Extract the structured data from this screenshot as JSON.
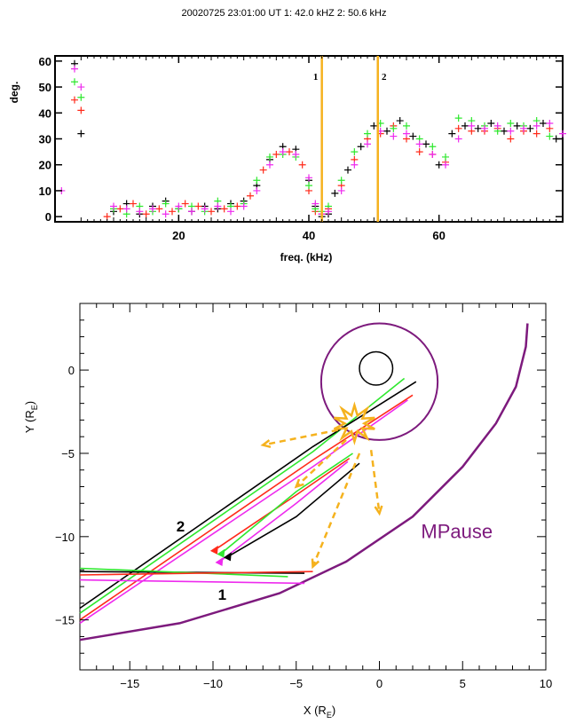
{
  "header": {
    "title": "20020725  23:01:00 UT  1: 42.0 kHZ    2:  50.6 kHz"
  },
  "colors": {
    "black": "#000000",
    "red": "#ff2a1a",
    "green": "#2ee82e",
    "magenta": "#ee2aee",
    "orange": "#f5b21e",
    "purple": "#7d1a7d"
  },
  "chart_data": [
    {
      "type": "scatter",
      "title": "20020725  23:01:00 UT  1: 42.0 kHZ    2:  50.6 kHz",
      "xlabel": "freq. (kHz)",
      "ylabel": "deg.",
      "xlim": [
        1,
        79
      ],
      "ylim": [
        -2,
        62
      ],
      "x_ticks": [
        20,
        40,
        60
      ],
      "y_ticks": [
        0,
        10,
        20,
        30,
        40,
        50,
        60
      ],
      "markers": [
        {
          "label": "1",
          "x": 42.0,
          "color": "#f5b21e"
        },
        {
          "label": "2",
          "x": 50.6,
          "color": "#f5b21e"
        }
      ],
      "series": [
        {
          "color": "#000000",
          "points": [
            [
              4,
              59
            ],
            [
              5,
              32
            ],
            [
              10,
              2
            ],
            [
              12,
              5
            ],
            [
              14,
              1
            ],
            [
              16,
              4
            ],
            [
              18,
              6
            ],
            [
              20,
              3
            ],
            [
              22,
              2
            ],
            [
              24,
              4
            ],
            [
              26,
              3
            ],
            [
              28,
              5
            ],
            [
              30,
              6
            ],
            [
              32,
              12
            ],
            [
              34,
              22
            ],
            [
              36,
              27
            ],
            [
              38,
              26
            ],
            [
              40,
              14
            ],
            [
              41,
              4
            ],
            [
              42,
              0
            ],
            [
              43,
              1
            ],
            [
              44,
              9
            ],
            [
              46,
              18
            ],
            [
              48,
              27
            ],
            [
              50,
              35
            ],
            [
              52,
              33
            ],
            [
              54,
              37
            ],
            [
              56,
              31
            ],
            [
              58,
              28
            ],
            [
              60,
              20
            ],
            [
              62,
              32
            ],
            [
              64,
              35
            ],
            [
              66,
              34
            ],
            [
              68,
              36
            ],
            [
              70,
              33
            ],
            [
              72,
              35
            ],
            [
              74,
              34
            ],
            [
              76,
              36
            ],
            [
              78,
              30
            ]
          ]
        },
        {
          "color": "#ff2a1a",
          "points": [
            [
              4,
              45
            ],
            [
              5,
              41
            ],
            [
              9,
              0
            ],
            [
              11,
              3
            ],
            [
              13,
              5
            ],
            [
              15,
              1
            ],
            [
              17,
              3
            ],
            [
              19,
              2
            ],
            [
              21,
              5
            ],
            [
              23,
              4
            ],
            [
              25,
              2
            ],
            [
              27,
              3
            ],
            [
              29,
              4
            ],
            [
              31,
              8
            ],
            [
              33,
              18
            ],
            [
              35,
              24
            ],
            [
              37,
              25
            ],
            [
              39,
              20
            ],
            [
              40,
              10
            ],
            [
              41,
              2
            ],
            [
              42,
              1
            ],
            [
              43,
              3
            ],
            [
              45,
              12
            ],
            [
              47,
              22
            ],
            [
              49,
              30
            ],
            [
              51,
              32
            ],
            [
              53,
              35
            ],
            [
              55,
              30
            ],
            [
              57,
              25
            ],
            [
              59,
              24
            ],
            [
              61,
              21
            ],
            [
              63,
              34
            ],
            [
              65,
              33
            ],
            [
              67,
              33
            ],
            [
              69,
              34
            ],
            [
              71,
              30
            ],
            [
              73,
              33
            ],
            [
              75,
              32
            ],
            [
              77,
              34
            ]
          ]
        },
        {
          "color": "#2ee82e",
          "points": [
            [
              4,
              52
            ],
            [
              5,
              46
            ],
            [
              10,
              3
            ],
            [
              12,
              1
            ],
            [
              14,
              4
            ],
            [
              16,
              2
            ],
            [
              18,
              5
            ],
            [
              20,
              3
            ],
            [
              22,
              4
            ],
            [
              24,
              2
            ],
            [
              26,
              6
            ],
            [
              28,
              4
            ],
            [
              30,
              5
            ],
            [
              32,
              14
            ],
            [
              34,
              23
            ],
            [
              36,
              24
            ],
            [
              38,
              23
            ],
            [
              40,
              12
            ],
            [
              41,
              3
            ],
            [
              42,
              2
            ],
            [
              43,
              4
            ],
            [
              45,
              14
            ],
            [
              47,
              25
            ],
            [
              49,
              32
            ],
            [
              51,
              36
            ],
            [
              53,
              34
            ],
            [
              55,
              35
            ],
            [
              57,
              30
            ],
            [
              59,
              27
            ],
            [
              61,
              23
            ],
            [
              63,
              38
            ],
            [
              65,
              37
            ],
            [
              67,
              35
            ],
            [
              69,
              33
            ],
            [
              71,
              36
            ],
            [
              73,
              35
            ],
            [
              75,
              37
            ],
            [
              77,
              31
            ]
          ]
        },
        {
          "color": "#ee2aee",
          "points": [
            [
              2,
              10
            ],
            [
              4,
              57
            ],
            [
              5,
              50
            ],
            [
              10,
              4
            ],
            [
              12,
              3
            ],
            [
              14,
              2
            ],
            [
              16,
              3
            ],
            [
              18,
              1
            ],
            [
              20,
              4
            ],
            [
              22,
              2
            ],
            [
              24,
              3
            ],
            [
              26,
              4
            ],
            [
              28,
              2
            ],
            [
              30,
              4
            ],
            [
              32,
              10
            ],
            [
              34,
              20
            ],
            [
              36,
              25
            ],
            [
              38,
              24
            ],
            [
              40,
              15
            ],
            [
              41,
              5
            ],
            [
              42,
              1
            ],
            [
              43,
              2
            ],
            [
              45,
              10
            ],
            [
              47,
              20
            ],
            [
              49,
              28
            ],
            [
              51,
              33
            ],
            [
              53,
              31
            ],
            [
              55,
              32
            ],
            [
              57,
              28
            ],
            [
              59,
              24
            ],
            [
              61,
              20
            ],
            [
              63,
              30
            ],
            [
              65,
              35
            ],
            [
              67,
              34
            ],
            [
              69,
              35
            ],
            [
              71,
              33
            ],
            [
              73,
              34
            ],
            [
              75,
              35
            ],
            [
              77,
              36
            ],
            [
              79,
              32
            ]
          ]
        }
      ]
    },
    {
      "type": "line",
      "xlabel": "X (R",
      "xlabel_sub": "E",
      "ylabel": "Y (R",
      "ylabel_sub": "E",
      "xlim": [
        -18,
        10
      ],
      "ylim": [
        -18,
        4
      ],
      "x_ticks": [
        -15,
        -10,
        -5,
        0,
        5,
        10
      ],
      "y_ticks": [
        -15,
        -10,
        -5,
        0
      ],
      "x_tick_labels": [
        "−15",
        "−10",
        "−5",
        "0",
        "5",
        "10"
      ],
      "y_tick_labels": [
        "−15",
        "−10",
        "−5",
        "0"
      ],
      "annotations": [
        {
          "text": "2",
          "x": -12.2,
          "y": -9.7,
          "color": "#000000"
        },
        {
          "text": "1",
          "x": -9.7,
          "y": -13.8,
          "color": "#000000"
        },
        {
          "text": "MPause",
          "x": 2.5,
          "y": -10.1,
          "color": "#7d1a7d"
        }
      ],
      "earth": {
        "x": -0.2,
        "y": 0.1,
        "r": 1
      },
      "circle": {
        "x": 0,
        "y": -0.7,
        "r": 3.5,
        "color": "#7d1a7d"
      },
      "magnetopause": {
        "color": "#7d1a7d",
        "points": [
          [
            -18,
            -16.2
          ],
          [
            -12,
            -15.2
          ],
          [
            -6,
            -13.4
          ],
          [
            -2,
            -11.5
          ],
          [
            2,
            -8.8
          ],
          [
            5,
            -5.8
          ],
          [
            7,
            -3.2
          ],
          [
            8.2,
            -1
          ],
          [
            8.8,
            1.4
          ],
          [
            8.9,
            2.8
          ]
        ]
      },
      "rays": [
        {
          "color": "#ff2a1a",
          "points": [
            [
              -18,
              -15
            ],
            [
              -4,
              -5.4
            ],
            [
              2,
              -1.5
            ]
          ]
        },
        {
          "color": "#2ee82e",
          "points": [
            [
              -18,
              -14.6
            ],
            [
              -4,
              -4.9
            ],
            [
              1.5,
              -0.5
            ]
          ]
        },
        {
          "color": "#000000",
          "points": [
            [
              -18,
              -14.3
            ],
            [
              -4,
              -4.6
            ],
            [
              2.2,
              -0.7
            ]
          ]
        },
        {
          "color": "#ee2aee",
          "points": [
            [
              -18,
              -15.2
            ],
            [
              -4,
              -5.8
            ],
            [
              1.7,
              -1.8
            ]
          ]
        },
        {
          "color": "#000000",
          "points": [
            [
              -18,
              -12.1
            ],
            [
              -4.5,
              -12.2
            ]
          ]
        },
        {
          "color": "#2ee82e",
          "points": [
            [
              -18,
              -11.9
            ],
            [
              -5.5,
              -12.4
            ]
          ]
        },
        {
          "color": "#ff2a1a",
          "points": [
            [
              -18,
              -12.3
            ],
            [
              -4,
              -12.1
            ]
          ]
        },
        {
          "color": "#ee2aee",
          "points": [
            [
              -18,
              -12.6
            ],
            [
              -4.5,
              -12.8
            ]
          ]
        },
        {
          "color": "#ff2a1a",
          "points": [
            [
              -1.8,
              -5.3
            ],
            [
              -5,
              -7.5
            ],
            [
              -9.9,
              -10.8
            ]
          ]
        },
        {
          "color": "#2ee82e",
          "points": [
            [
              -1.6,
              -5
            ],
            [
              -5,
              -7.3
            ],
            [
              -9.5,
              -11
            ]
          ]
        },
        {
          "color": "#ee2aee",
          "points": [
            [
              -1.9,
              -5.5
            ],
            [
              -5,
              -8
            ],
            [
              -9.6,
              -11.5
            ]
          ]
        },
        {
          "color": "#000000",
          "points": [
            [
              -1.2,
              -5.6
            ],
            [
              -5,
              -8.8
            ],
            [
              -9.1,
              -11.2
            ]
          ]
        }
      ],
      "arrowheads": [
        {
          "color": "#ff2a1a",
          "x": -9.9,
          "y": -10.8
        },
        {
          "color": "#2ee82e",
          "x": -9.5,
          "y": -11
        },
        {
          "color": "#ee2aee",
          "x": -9.6,
          "y": -11.5
        },
        {
          "color": "#000000",
          "x": -9.1,
          "y": -11.2
        }
      ],
      "source_burst": {
        "x": -1.5,
        "y": -3.2,
        "color": "#f5b21e"
      },
      "dashed_arrows": [
        {
          "from": [
            -2.5,
            -3.6
          ],
          "to": [
            -7,
            -4.5
          ]
        },
        {
          "from": [
            -2,
            -4.2
          ],
          "to": [
            -5,
            -7
          ]
        },
        {
          "from": [
            -1.2,
            -5
          ],
          "to": [
            -4,
            -11.8
          ]
        },
        {
          "from": [
            -0.5,
            -4.8
          ],
          "to": [
            0,
            -8.6
          ]
        }
      ]
    }
  ]
}
